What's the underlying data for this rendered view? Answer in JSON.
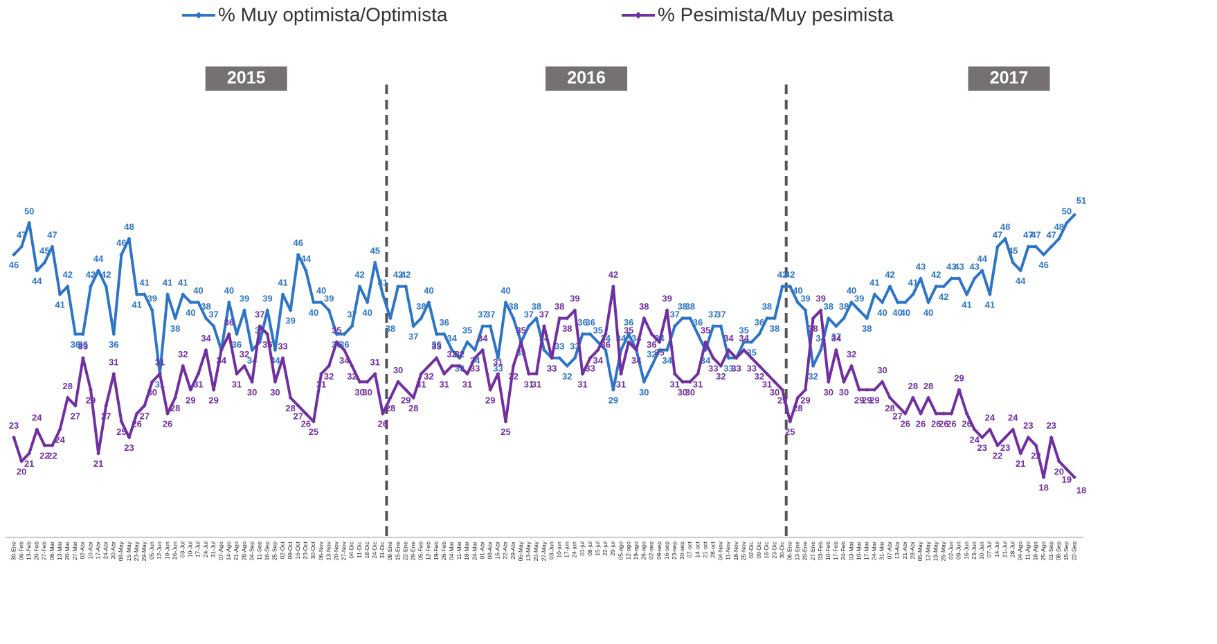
{
  "chart_data": {
    "type": "line",
    "legend": "top",
    "annotations": [
      "2015",
      "2016",
      "2017"
    ],
    "categories": [
      "30-Ene",
      "06-Feb",
      "13-Feb",
      "20-Feb",
      "27-Feb",
      "06-Mar",
      "13-Mar",
      "20-Mar",
      "27-Mar",
      "02-Abr",
      "10-Abr",
      "17-Abr",
      "24-Abr",
      "30-Abr",
      "08-May",
      "15-May",
      "23-May",
      "29-May",
      "05-Jun",
      "12-Jun",
      "19-Jun",
      "26-Jun",
      "03-Jul",
      "10-Jul",
      "17-Jul",
      "24-Jul",
      "31-Jul",
      "07-Ago",
      "14-Ago",
      "21-Ago",
      "28-Ago",
      "04-Sep",
      "11-Sep",
      "16-Sep",
      "25-Sep",
      "02-Oct",
      "09-Oct",
      "16-Oct",
      "23-Oct",
      "30-Oct",
      "06-Nov",
      "13-Nov",
      "20-Nov",
      "27-Nov",
      "04-Dic",
      "11-Dic",
      "18-Dic",
      "24-Dic",
      "31-Dic",
      "08-Ene",
      "15-Ene",
      "22-Ene",
      "29-Ene",
      "05-Feb",
      "12-Feb",
      "19-Feb",
      "26-Feb",
      "04-Mar",
      "11-Mar",
      "18-Mar",
      "24-Mar",
      "01-Abr",
      "08-Abr",
      "15-Abr",
      "22-Abr",
      "29-Abr",
      "06-May",
      "13-May",
      "20-May",
      "27-May",
      "03-Jun",
      "10-jun",
      "17-jun",
      "24-jun",
      "01-jul",
      "08-jul",
      "15-jul",
      "22-jul",
      "29-jul",
      "05-ago",
      "12-ago",
      "19-ago",
      "26-ago",
      "02-sep",
      "09-sep",
      "16-sep",
      "23-sep",
      "30-sep",
      "07-oct",
      "14-oct",
      "21-oct",
      "28-oct",
      "04-Nov",
      "11-Nov",
      "18-Nov",
      "25-Nov",
      "02-Dic",
      "09-Dic",
      "16-Dic",
      "23-Dic",
      "30-Dic",
      "06-Ene",
      "13-Ene",
      "20-Ene",
      "27-Ene",
      "03-Feb",
      "10-Feb",
      "17-Feb",
      "24-Feb",
      "03-Mar",
      "10-Mar",
      "17-Mar",
      "24-Mar",
      "31-Mar",
      "07-Abr",
      "13-Abr",
      "21-Abr",
      "28-Abr",
      "05-May",
      "12-May",
      "19-May",
      "26-May",
      "02-Jun",
      "09-Jun",
      "16-Jun",
      "23-Jun",
      "30-Jun",
      "07-Jul",
      "14-Jul",
      "21-Jul",
      "28-Jul",
      "04-Ago",
      "11-Ago",
      "18-Ago",
      "25-Ago",
      "01-Sep",
      "08-Sep",
      "15-Sep",
      "22-Sep"
    ],
    "ylim": [
      12,
      58
    ],
    "series": [
      {
        "name": "% Muy optimista/Optimista",
        "color": "#2e75c6",
        "values": [
          46,
          47,
          50,
          44,
          45,
          47,
          41,
          42,
          36,
          36,
          42,
          44,
          42,
          36,
          46,
          48,
          41,
          41,
          39,
          31,
          41,
          38,
          41,
          40,
          40,
          38,
          37,
          34,
          40,
          36,
          39,
          34,
          35,
          39,
          34,
          41,
          39,
          46,
          44,
          40,
          40,
          39,
          36,
          36,
          37,
          42,
          40,
          45,
          41,
          38,
          42,
          42,
          37,
          38,
          40,
          36,
          36,
          34,
          33,
          35,
          34,
          37,
          37,
          33,
          40,
          38,
          35,
          37,
          38,
          34,
          33,
          33,
          32,
          33,
          36,
          36,
          35,
          34,
          29,
          34,
          36,
          34,
          30,
          32,
          34,
          34,
          37,
          38,
          38,
          36,
          34,
          37,
          37,
          33,
          33,
          35,
          35,
          36,
          38,
          38,
          42,
          42,
          40,
          39,
          32,
          34,
          38,
          37,
          38,
          40,
          39,
          38,
          41,
          40,
          42,
          40,
          40,
          41,
          43,
          40,
          42,
          42,
          43,
          43,
          41,
          43,
          44,
          41,
          47,
          48,
          45,
          44,
          47,
          47,
          46,
          47,
          48,
          50,
          51
        ]
      },
      {
        "name": "% Pesimista/Muy pesimista",
        "color": "#7030a0",
        "values": [
          23,
          20,
          21,
          24,
          22,
          22,
          24,
          28,
          27,
          33,
          29,
          21,
          27,
          31,
          25,
          23,
          26,
          27,
          30,
          31,
          26,
          28,
          32,
          29,
          31,
          34,
          29,
          34,
          36,
          31,
          32,
          30,
          37,
          36,
          30,
          33,
          28,
          27,
          26,
          25,
          31,
          32,
          35,
          34,
          32,
          30,
          30,
          31,
          26,
          28,
          30,
          29,
          28,
          31,
          32,
          33,
          31,
          32,
          32,
          31,
          33,
          34,
          29,
          31,
          25,
          32,
          35,
          31,
          31,
          37,
          33,
          38,
          38,
          39,
          31,
          33,
          34,
          36,
          42,
          31,
          35,
          34,
          38,
          36,
          35,
          39,
          31,
          30,
          30,
          31,
          35,
          33,
          32,
          34,
          33,
          34,
          33,
          32,
          31,
          30,
          29,
          25,
          28,
          29,
          38,
          39,
          30,
          34,
          30,
          32,
          29,
          29,
          29,
          30,
          28,
          27,
          26,
          28,
          26,
          28,
          26,
          26,
          26,
          29,
          26,
          24,
          23,
          24,
          22,
          23,
          24,
          21,
          23,
          22,
          18,
          23,
          20,
          19,
          18
        ]
      }
    ]
  }
}
